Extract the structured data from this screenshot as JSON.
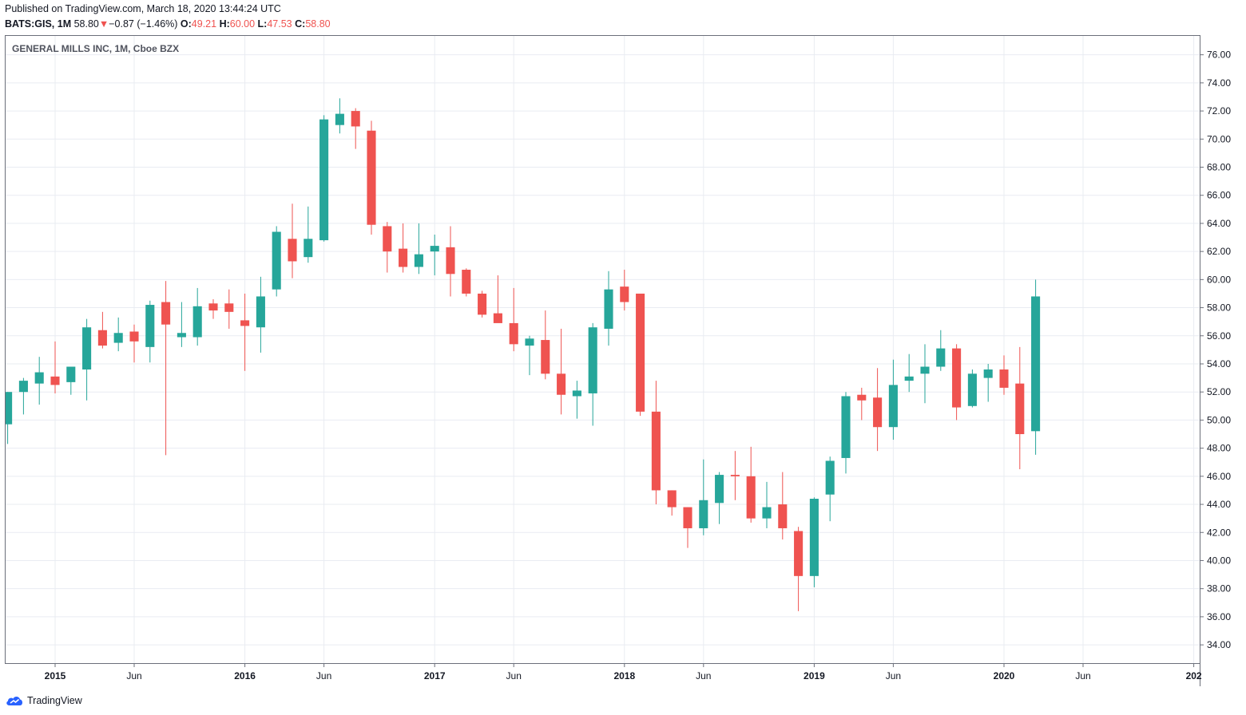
{
  "header": {
    "published": "Published on TradingView.com, March 18, 2020 13:44:24 UTC",
    "symbol": "BATS:GIS, 1M",
    "last": "58.80",
    "change": "−0.87 (−1.46%)",
    "o_label": "O:",
    "o_value": "49.21",
    "h_label": "H:",
    "h_value": "60.00",
    "l_label": "L:",
    "l_value": "47.53",
    "c_label": "C:",
    "c_value": "58.80"
  },
  "footer": {
    "brand": "TradingView",
    "logo_icon": "tradingview-cloud-icon"
  },
  "colors": {
    "up": "#26a69a",
    "down": "#ef5350",
    "grid": "#e9ecf2",
    "axis_text": "#131722",
    "border": "#6b6f7a"
  },
  "chart_data": {
    "type": "candlestick",
    "title": "GENERAL MILLS INC, 1M, Cboe BZX",
    "interval": "1M",
    "ylim": [
      32.7,
      77.4
    ],
    "y_ticks": [
      "34.00",
      "36.00",
      "38.00",
      "40.00",
      "42.00",
      "44.00",
      "46.00",
      "48.00",
      "50.00",
      "52.00",
      "54.00",
      "56.00",
      "58.00",
      "60.00",
      "62.00",
      "64.00",
      "66.00",
      "68.00",
      "70.00",
      "72.00",
      "74.00",
      "76.00"
    ],
    "x_ticks": [
      {
        "label": "2015",
        "date": "2015-01"
      },
      {
        "label": "Jun",
        "date": "2015-06"
      },
      {
        "label": "2016",
        "date": "2016-01"
      },
      {
        "label": "Jun",
        "date": "2016-06"
      },
      {
        "label": "2017",
        "date": "2017-01"
      },
      {
        "label": "Jun",
        "date": "2017-06"
      },
      {
        "label": "2018",
        "date": "2018-01"
      },
      {
        "label": "Jun",
        "date": "2018-06"
      },
      {
        "label": "2019",
        "date": "2019-01"
      },
      {
        "label": "Jun",
        "date": "2019-06"
      },
      {
        "label": "2020",
        "date": "2020-01"
      },
      {
        "label": "Jun",
        "date": "2020-06"
      },
      {
        "label": "202",
        "date": "2021-01"
      }
    ],
    "candles": [
      {
        "date": "2014-10",
        "o": 49.7,
        "h": 52.0,
        "l": 48.3,
        "c": 52.0
      },
      {
        "date": "2014-11",
        "o": 52.0,
        "h": 53.0,
        "l": 50.4,
        "c": 52.8
      },
      {
        "date": "2014-12",
        "o": 52.6,
        "h": 54.5,
        "l": 51.1,
        "c": 53.4
      },
      {
        "date": "2015-01",
        "o": 53.1,
        "h": 55.6,
        "l": 51.9,
        "c": 52.5
      },
      {
        "date": "2015-02",
        "o": 52.7,
        "h": 53.8,
        "l": 51.8,
        "c": 53.8
      },
      {
        "date": "2015-03",
        "o": 53.6,
        "h": 57.2,
        "l": 51.4,
        "c": 56.6
      },
      {
        "date": "2015-04",
        "o": 56.4,
        "h": 57.7,
        "l": 55.1,
        "c": 55.3
      },
      {
        "date": "2015-05",
        "o": 55.5,
        "h": 57.3,
        "l": 54.9,
        "c": 56.2
      },
      {
        "date": "2015-06",
        "o": 56.3,
        "h": 56.8,
        "l": 54.1,
        "c": 55.6
      },
      {
        "date": "2015-07",
        "o": 55.2,
        "h": 58.5,
        "l": 54.1,
        "c": 58.2
      },
      {
        "date": "2015-08",
        "o": 58.4,
        "h": 59.9,
        "l": 47.5,
        "c": 56.8
      },
      {
        "date": "2015-09",
        "o": 55.9,
        "h": 58.4,
        "l": 55.2,
        "c": 56.2
      },
      {
        "date": "2015-10",
        "o": 55.9,
        "h": 59.4,
        "l": 55.3,
        "c": 58.1
      },
      {
        "date": "2015-11",
        "o": 58.3,
        "h": 58.6,
        "l": 57.2,
        "c": 57.8
      },
      {
        "date": "2015-12",
        "o": 58.3,
        "h": 59.3,
        "l": 56.5,
        "c": 57.7
      },
      {
        "date": "2016-01",
        "o": 57.1,
        "h": 59.0,
        "l": 53.5,
        "c": 56.7
      },
      {
        "date": "2016-02",
        "o": 56.6,
        "h": 60.2,
        "l": 54.8,
        "c": 58.8
      },
      {
        "date": "2016-03",
        "o": 59.3,
        "h": 63.8,
        "l": 58.8,
        "c": 63.4
      },
      {
        "date": "2016-04",
        "o": 62.9,
        "h": 65.4,
        "l": 60.1,
        "c": 61.3
      },
      {
        "date": "2016-05",
        "o": 61.6,
        "h": 65.2,
        "l": 61.2,
        "c": 62.9
      },
      {
        "date": "2016-06",
        "o": 62.8,
        "h": 71.7,
        "l": 62.7,
        "c": 71.4
      },
      {
        "date": "2016-07",
        "o": 71.0,
        "h": 72.9,
        "l": 70.4,
        "c": 71.8
      },
      {
        "date": "2016-08",
        "o": 72.0,
        "h": 72.2,
        "l": 69.3,
        "c": 70.9
      },
      {
        "date": "2016-09",
        "o": 70.6,
        "h": 71.3,
        "l": 63.2,
        "c": 63.9
      },
      {
        "date": "2016-10",
        "o": 63.8,
        "h": 64.1,
        "l": 60.5,
        "c": 62.0
      },
      {
        "date": "2016-11",
        "o": 62.2,
        "h": 64.0,
        "l": 60.5,
        "c": 60.9
      },
      {
        "date": "2016-12",
        "o": 60.9,
        "h": 64.0,
        "l": 60.4,
        "c": 61.8
      },
      {
        "date": "2017-01",
        "o": 62.0,
        "h": 63.2,
        "l": 60.3,
        "c": 62.4
      },
      {
        "date": "2017-02",
        "o": 62.3,
        "h": 63.8,
        "l": 58.8,
        "c": 60.4
      },
      {
        "date": "2017-03",
        "o": 60.7,
        "h": 60.8,
        "l": 58.8,
        "c": 59.0
      },
      {
        "date": "2017-04",
        "o": 59.0,
        "h": 59.2,
        "l": 57.3,
        "c": 57.5
      },
      {
        "date": "2017-05",
        "o": 57.6,
        "h": 60.3,
        "l": 57.0,
        "c": 56.9
      },
      {
        "date": "2017-06",
        "o": 56.9,
        "h": 59.4,
        "l": 54.9,
        "c": 55.4
      },
      {
        "date": "2017-07",
        "o": 55.3,
        "h": 56.0,
        "l": 53.2,
        "c": 55.8
      },
      {
        "date": "2017-08",
        "o": 55.7,
        "h": 57.8,
        "l": 52.9,
        "c": 53.3
      },
      {
        "date": "2017-09",
        "o": 53.3,
        "h": 56.5,
        "l": 50.4,
        "c": 51.8
      },
      {
        "date": "2017-10",
        "o": 51.7,
        "h": 52.8,
        "l": 50.1,
        "c": 52.1
      },
      {
        "date": "2017-11",
        "o": 51.9,
        "h": 56.9,
        "l": 49.6,
        "c": 56.6
      },
      {
        "date": "2017-12",
        "o": 56.5,
        "h": 60.6,
        "l": 55.3,
        "c": 59.3
      },
      {
        "date": "2018-01",
        "o": 59.5,
        "h": 60.7,
        "l": 57.8,
        "c": 58.4
      },
      {
        "date": "2018-02",
        "o": 59.0,
        "h": 59.0,
        "l": 50.3,
        "c": 50.6
      },
      {
        "date": "2018-03",
        "o": 50.6,
        "h": 52.8,
        "l": 44.0,
        "c": 45.0
      },
      {
        "date": "2018-04",
        "o": 45.0,
        "h": 45.0,
        "l": 43.2,
        "c": 43.8
      },
      {
        "date": "2018-05",
        "o": 43.8,
        "h": 43.8,
        "l": 40.9,
        "c": 42.3
      },
      {
        "date": "2018-06",
        "o": 42.3,
        "h": 47.2,
        "l": 41.8,
        "c": 44.3
      },
      {
        "date": "2018-07",
        "o": 44.1,
        "h": 46.3,
        "l": 42.6,
        "c": 46.1
      },
      {
        "date": "2018-08",
        "o": 46.1,
        "h": 47.8,
        "l": 44.3,
        "c": 46.0
      },
      {
        "date": "2018-09",
        "o": 46.0,
        "h": 48.1,
        "l": 42.7,
        "c": 43.0
      },
      {
        "date": "2018-10",
        "o": 43.0,
        "h": 45.6,
        "l": 42.3,
        "c": 43.8
      },
      {
        "date": "2018-11",
        "o": 44.0,
        "h": 46.3,
        "l": 41.5,
        "c": 42.3
      },
      {
        "date": "2018-12",
        "o": 42.1,
        "h": 42.4,
        "l": 36.4,
        "c": 38.9
      },
      {
        "date": "2019-01",
        "o": 38.9,
        "h": 44.5,
        "l": 38.1,
        "c": 44.4
      },
      {
        "date": "2019-02",
        "o": 44.7,
        "h": 47.4,
        "l": 42.8,
        "c": 47.1
      },
      {
        "date": "2019-03",
        "o": 47.3,
        "h": 52.0,
        "l": 46.2,
        "c": 51.7
      },
      {
        "date": "2019-04",
        "o": 51.8,
        "h": 52.3,
        "l": 50.0,
        "c": 51.4
      },
      {
        "date": "2019-05",
        "o": 51.6,
        "h": 53.7,
        "l": 47.8,
        "c": 49.5
      },
      {
        "date": "2019-06",
        "o": 49.5,
        "h": 54.3,
        "l": 48.6,
        "c": 52.5
      },
      {
        "date": "2019-07",
        "o": 52.8,
        "h": 54.7,
        "l": 52.0,
        "c": 53.1
      },
      {
        "date": "2019-08",
        "o": 53.3,
        "h": 55.4,
        "l": 51.2,
        "c": 53.8
      },
      {
        "date": "2019-09",
        "o": 53.8,
        "h": 56.4,
        "l": 53.5,
        "c": 55.1
      },
      {
        "date": "2019-10",
        "o": 55.1,
        "h": 55.4,
        "l": 50.0,
        "c": 50.9
      },
      {
        "date": "2019-11",
        "o": 51.0,
        "h": 53.6,
        "l": 50.9,
        "c": 53.3
      },
      {
        "date": "2019-12",
        "o": 53.0,
        "h": 54.0,
        "l": 51.3,
        "c": 53.6
      },
      {
        "date": "2020-01",
        "o": 53.6,
        "h": 54.6,
        "l": 51.8,
        "c": 52.3
      },
      {
        "date": "2020-02",
        "o": 52.6,
        "h": 55.2,
        "l": 46.5,
        "c": 49.0
      },
      {
        "date": "2020-03",
        "o": 49.21,
        "h": 60.0,
        "l": 47.53,
        "c": 58.8
      }
    ]
  }
}
